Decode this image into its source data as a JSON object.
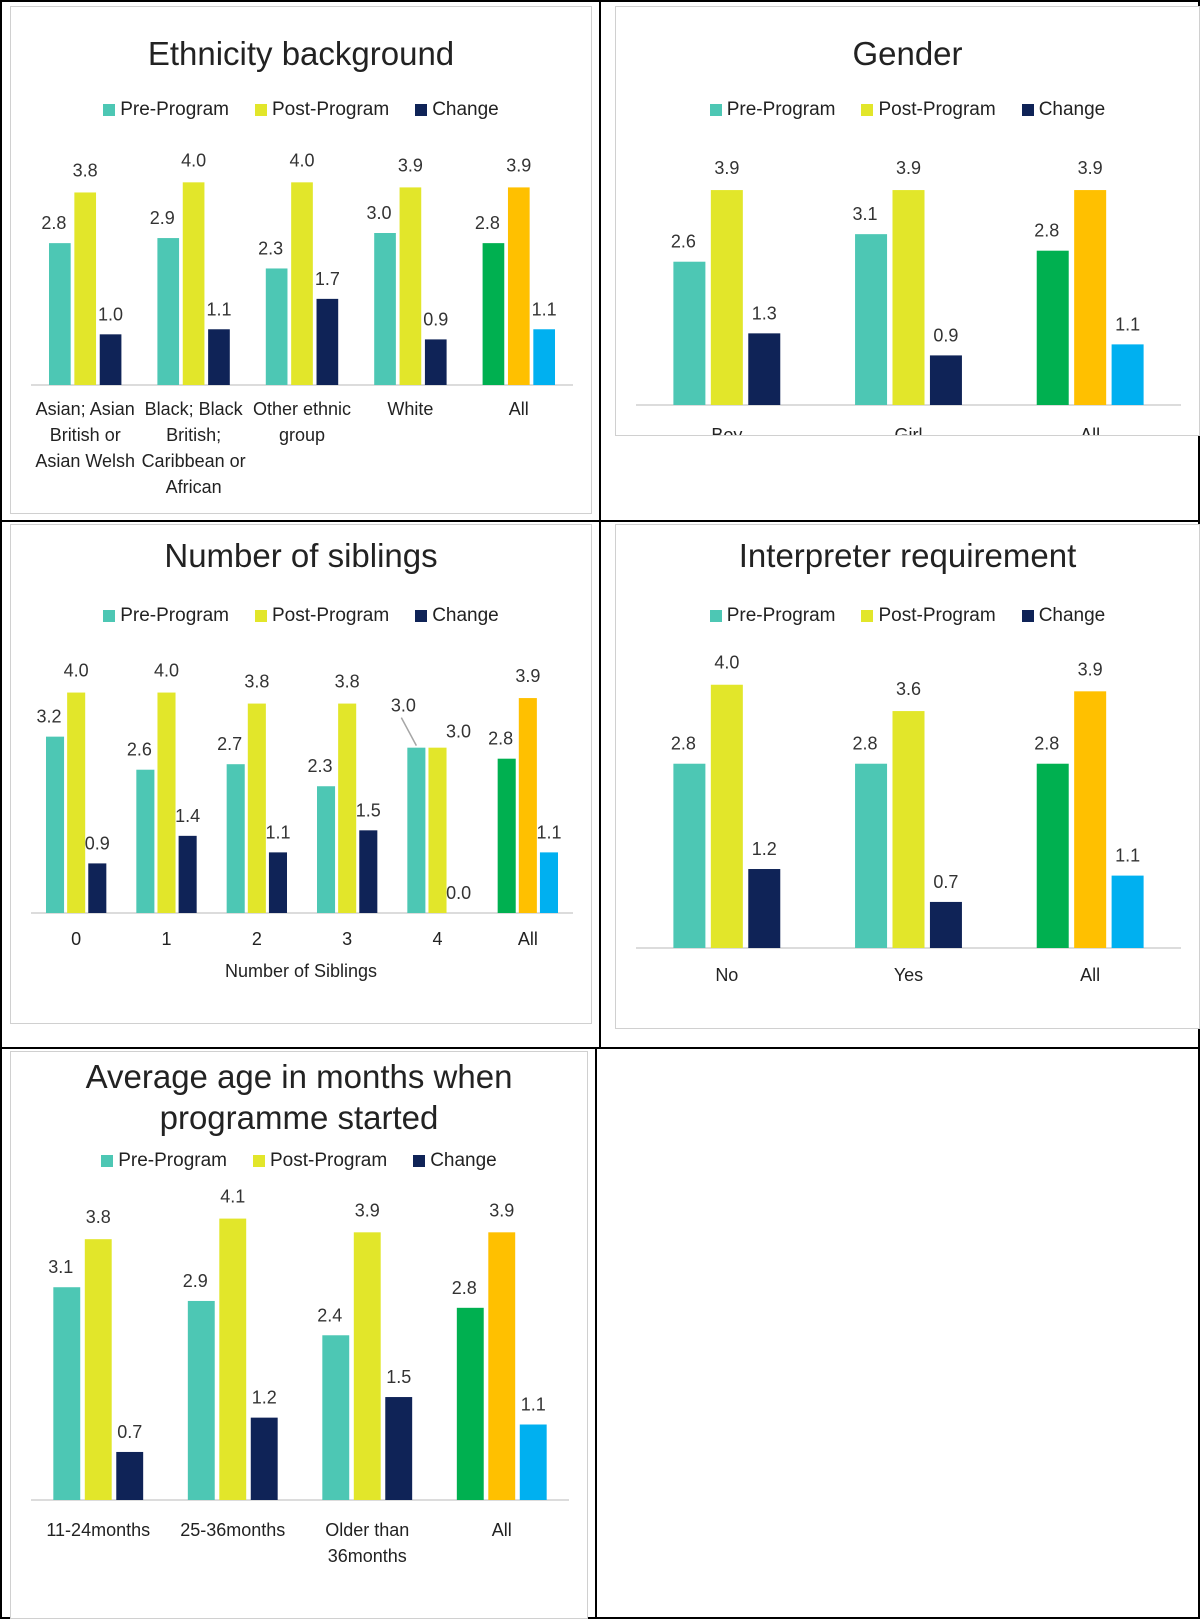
{
  "colors": {
    "pre": "#4dc7b4",
    "post": "#e2e62a",
    "change": "#0f2357",
    "all_pre": "#00b050",
    "all_post": "#ffc000",
    "all_change": "#00b0f0"
  },
  "legend": [
    "Pre-Program",
    "Post-Program",
    "Change"
  ],
  "chart_data": [
    {
      "type": "bar",
      "title": "Ethnicity background",
      "categories": [
        "Asian; Asian British or Asian Welsh",
        "Black; Black British; Caribbean or African",
        "Other ethnic group",
        "White",
        "All"
      ],
      "category_lines": [
        [
          "Asian; Asian",
          "British or",
          "Asian Welsh"
        ],
        [
          "Black; Black",
          "British;",
          "Caribbean or",
          "African"
        ],
        [
          "Other ethnic",
          "group"
        ],
        [
          "White"
        ],
        [
          "All"
        ]
      ],
      "series": [
        {
          "name": "Pre-Program",
          "values": [
            2.8,
            2.9,
            2.3,
            3.0,
            2.8
          ]
        },
        {
          "name": "Post-Program",
          "values": [
            3.8,
            4.0,
            4.0,
            3.9,
            3.9
          ]
        },
        {
          "name": "Change",
          "values": [
            1.0,
            1.1,
            1.7,
            0.9,
            1.1
          ]
        }
      ],
      "labels": [
        [
          "2.8",
          "2.9",
          "2.3",
          "3.0",
          "2.8"
        ],
        [
          "3.8",
          "4.0",
          "4.0",
          "3.9",
          "3.9"
        ],
        [
          "1.0",
          "1.1",
          "1.7",
          "0.9",
          "1.1"
        ]
      ],
      "xlabel": "",
      "highlight_last": true
    },
    {
      "type": "bar",
      "title": "Gender",
      "categories": [
        "Boy",
        "Girl",
        "All"
      ],
      "category_lines": [
        [
          "Boy"
        ],
        [
          "Girl"
        ],
        [
          "All"
        ]
      ],
      "series": [
        {
          "name": "Pre-Program",
          "values": [
            2.6,
            3.1,
            2.8
          ]
        },
        {
          "name": "Post-Program",
          "values": [
            3.9,
            3.9,
            3.9
          ]
        },
        {
          "name": "Change",
          "values": [
            1.3,
            0.9,
            1.1
          ]
        }
      ],
      "labels": [
        [
          "2.6",
          "3.1",
          "2.8"
        ],
        [
          "3.9",
          "3.9",
          "3.9"
        ],
        [
          "1.3",
          "0.9",
          "1.1"
        ]
      ],
      "xlabel": "",
      "highlight_last": true
    },
    {
      "type": "bar",
      "title": "Number of siblings",
      "categories": [
        "0",
        "1",
        "2",
        "3",
        "4",
        "All"
      ],
      "category_lines": [
        [
          "0"
        ],
        [
          "1"
        ],
        [
          "2"
        ],
        [
          "3"
        ],
        [
          "4"
        ],
        [
          "All"
        ]
      ],
      "series": [
        {
          "name": "Pre-Program",
          "values": [
            3.2,
            2.6,
            2.7,
            2.3,
            3.0,
            2.8
          ]
        },
        {
          "name": "Post-Program",
          "values": [
            4.0,
            4.0,
            3.8,
            3.8,
            3.0,
            3.9
          ]
        },
        {
          "name": "Change",
          "values": [
            0.9,
            1.4,
            1.1,
            1.5,
            0.0,
            1.1
          ]
        }
      ],
      "labels": [
        [
          "3.2",
          "2.6",
          "2.7",
          "2.3",
          "3.0",
          "2.8"
        ],
        [
          "4.0",
          "4.0",
          "3.8",
          "3.8",
          "3.0",
          "3.9"
        ],
        [
          "0.9",
          "1.4",
          "1.1",
          "1.5",
          "0.0",
          "1.1"
        ]
      ],
      "xlabel": "Number of Siblings",
      "highlight_last": true
    },
    {
      "type": "bar",
      "title": "Interpreter requirement",
      "categories": [
        "No",
        "Yes",
        "All"
      ],
      "category_lines": [
        [
          "No"
        ],
        [
          "Yes"
        ],
        [
          "All"
        ]
      ],
      "series": [
        {
          "name": "Pre-Program",
          "values": [
            2.8,
            2.8,
            2.8
          ]
        },
        {
          "name": "Post-Program",
          "values": [
            4.0,
            3.6,
            3.9
          ]
        },
        {
          "name": "Change",
          "values": [
            1.2,
            0.7,
            1.1
          ]
        }
      ],
      "labels": [
        [
          "2.8",
          "2.8",
          "2.8"
        ],
        [
          "4.0",
          "3.6",
          "3.9"
        ],
        [
          "1.2",
          "0.7",
          "1.1"
        ]
      ],
      "xlabel": "",
      "highlight_last": true
    },
    {
      "type": "bar",
      "title": "Average age in months when programme started",
      "title_lines": [
        "Average age in months when",
        "programme started"
      ],
      "categories": [
        "11-24months",
        "25-36months",
        "Older than 36months",
        "All"
      ],
      "category_lines": [
        [
          "11-24months"
        ],
        [
          "25-36months"
        ],
        [
          "Older than",
          "36months"
        ],
        [
          "All"
        ]
      ],
      "series": [
        {
          "name": "Pre-Program",
          "values": [
            3.1,
            2.9,
            2.4,
            2.8
          ]
        },
        {
          "name": "Post-Program",
          "values": [
            3.8,
            4.1,
            3.9,
            3.9
          ]
        },
        {
          "name": "Change",
          "values": [
            0.7,
            1.2,
            1.5,
            1.1
          ]
        }
      ],
      "labels": [
        [
          "3.1",
          "2.9",
          "2.4",
          "2.8"
        ],
        [
          "3.8",
          "4.1",
          "3.9",
          "3.9"
        ],
        [
          "0.7",
          "1.2",
          "1.5",
          "1.1"
        ]
      ],
      "xlabel": "",
      "highlight_last": true
    }
  ]
}
